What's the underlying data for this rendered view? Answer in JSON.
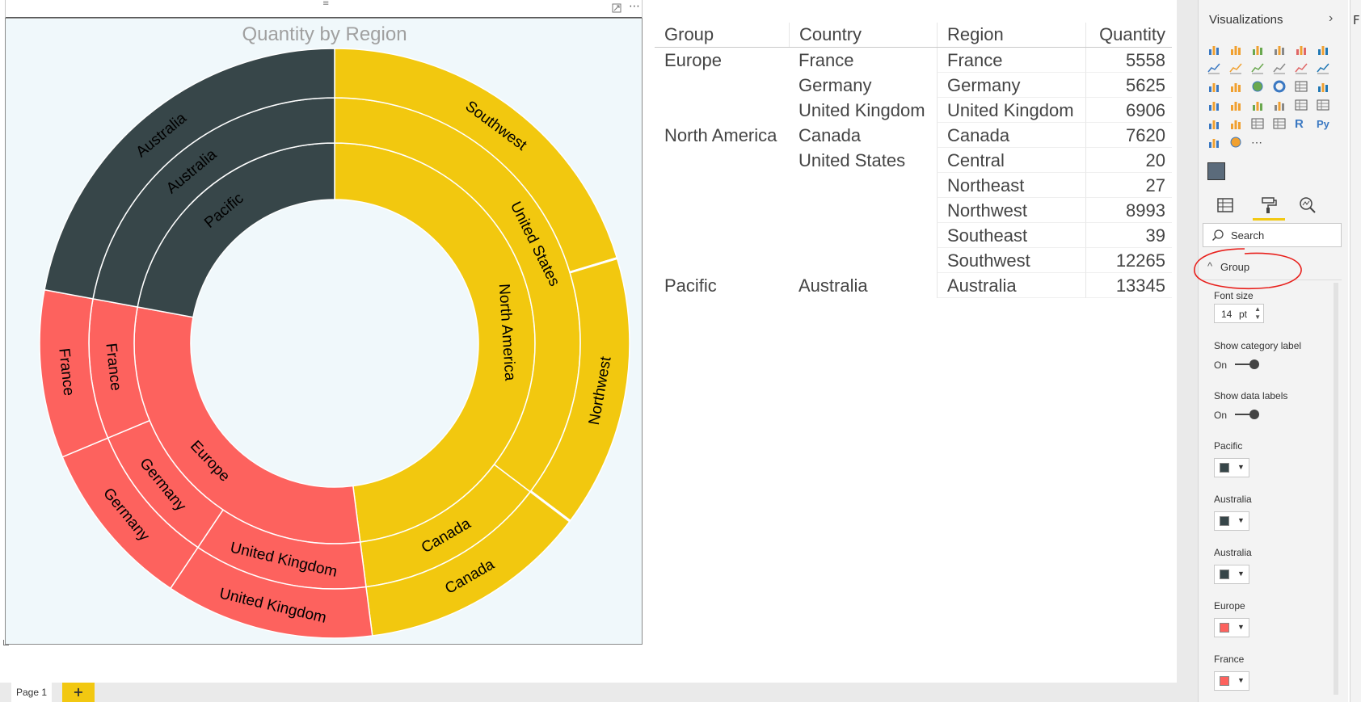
{
  "chart": {
    "title": "Quantity by Region",
    "colors": {
      "pacific": "#374649",
      "europe": "#fd625e",
      "north_america": "#f2c80f",
      "background": "#f0f8fb"
    }
  },
  "chart_data": {
    "type": "sunburst",
    "title": "Quantity by Region",
    "rings": [
      {
        "level": "Group",
        "segments": [
          {
            "label": "North America",
            "value": 28964,
            "color": "#f2c80f"
          },
          {
            "label": "Europe",
            "value": 18089,
            "color": "#fd625e"
          },
          {
            "label": "Pacific",
            "value": 13345,
            "color": "#374649"
          }
        ]
      },
      {
        "level": "Country",
        "segments": [
          {
            "label": "United States",
            "value": 21344,
            "color": "#f2c80f"
          },
          {
            "label": "Canada",
            "value": 7620,
            "color": "#f2c80f"
          },
          {
            "label": "United Kingdom",
            "value": 6906,
            "color": "#fd625e"
          },
          {
            "label": "Germany",
            "value": 5625,
            "color": "#fd625e"
          },
          {
            "label": "France",
            "value": 5558,
            "color": "#fd625e"
          },
          {
            "label": "Australia",
            "value": 13345,
            "color": "#374649"
          }
        ]
      },
      {
        "level": "Region",
        "segments": [
          {
            "label": "Southwest",
            "value": 12265,
            "color": "#f2c80f"
          },
          {
            "label": "Southeast",
            "value": 39,
            "color": "#f2c80f"
          },
          {
            "label": "Northwest",
            "value": 8993,
            "color": "#f2c80f"
          },
          {
            "label": "Northeast",
            "value": 27,
            "color": "#f2c80f"
          },
          {
            "label": "Central",
            "value": 20,
            "color": "#f2c80f"
          },
          {
            "label": "Canada",
            "value": 7620,
            "color": "#f2c80f"
          },
          {
            "label": "United Kingdom",
            "value": 6906,
            "color": "#fd625e"
          },
          {
            "label": "Germany",
            "value": 5625,
            "color": "#fd625e"
          },
          {
            "label": "France",
            "value": 5558,
            "color": "#fd625e"
          },
          {
            "label": "Australia",
            "value": 13345,
            "color": "#374649"
          }
        ]
      }
    ]
  },
  "table": {
    "headers": [
      "Group",
      "Country",
      "Region",
      "Quantity"
    ],
    "rows": [
      [
        "Europe",
        "France",
        "France",
        "5558"
      ],
      [
        "",
        "Germany",
        "Germany",
        "5625"
      ],
      [
        "",
        "United Kingdom",
        "United Kingdom",
        "6906"
      ],
      [
        "North America",
        "Canada",
        "Canada",
        "7620"
      ],
      [
        "",
        "United States",
        "Central",
        "20"
      ],
      [
        "",
        "",
        "Northeast",
        "27"
      ],
      [
        "",
        "",
        "Northwest",
        "8993"
      ],
      [
        "",
        "",
        "Southeast",
        "39"
      ],
      [
        "",
        "",
        "Southwest",
        "12265"
      ],
      [
        "Pacific",
        "Australia",
        "Australia",
        "13345"
      ]
    ]
  },
  "pane": {
    "title": "Visualizations",
    "search_placeholder": "Search",
    "section": "Group",
    "font_size_label": "Font size",
    "font_size_value": "14",
    "font_size_unit": "pt",
    "show_category_label": "Show category label",
    "show_category_state": "On",
    "show_data_labels": "Show data labels",
    "show_data_state": "On",
    "color_items": [
      {
        "label": "Pacific",
        "color": "#374649"
      },
      {
        "label": "Australia",
        "color": "#374649"
      },
      {
        "label": "Australia",
        "color": "#374649"
      },
      {
        "label": "Europe",
        "color": "#fd625e"
      },
      {
        "label": "France",
        "color": "#fd625e"
      }
    ],
    "far_title": "F"
  },
  "footer": {
    "page_tab": "Page 1",
    "add_page": "+"
  }
}
